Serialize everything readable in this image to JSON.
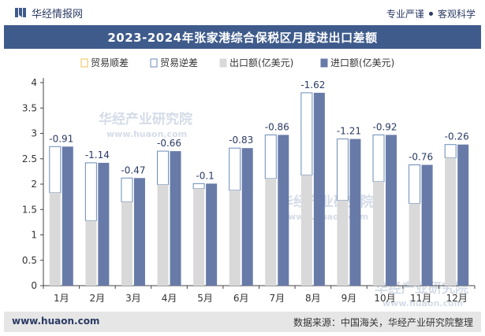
{
  "header": {
    "brand": "华经情报网",
    "slogan_left": "专业严谨",
    "slogan_right": "客观科学"
  },
  "title": "2023-2024年张家港综合保税区月度进出口差额",
  "footer": {
    "website": "www.huaon.com",
    "source": "数据来源：中国海关，华经产业研究院整理"
  },
  "watermark": {
    "cn": "华经产业研究院",
    "en": "www.huaon.com"
  },
  "colors": {
    "export": "#d9d9d9",
    "import": "#687ba8",
    "title_bg": "#3f5b8c",
    "footer_bg": "#e6e6e6"
  },
  "chart_data": {
    "type": "bar",
    "categories": [
      "1月",
      "2月",
      "3月",
      "4月",
      "5月",
      "6月",
      "7月",
      "8月",
      "9月",
      "10月",
      "11月",
      "12月"
    ],
    "legend": [
      "贸易顺差",
      "贸易逆差",
      "出口额(亿美元)",
      "进口额(亿美元)"
    ],
    "series": [
      {
        "name": "出口额(亿美元)",
        "values": [
          1.83,
          1.28,
          1.65,
          1.99,
          1.91,
          1.88,
          2.11,
          2.18,
          1.68,
          2.05,
          1.62,
          2.52
        ]
      },
      {
        "name": "进口额(亿美元)",
        "values": [
          2.74,
          2.42,
          2.12,
          2.65,
          2.01,
          2.71,
          2.97,
          3.8,
          2.89,
          2.97,
          2.38,
          2.78
        ]
      }
    ],
    "balance": [
      -0.91,
      -1.14,
      -0.47,
      -0.66,
      -0.1,
      -0.83,
      -0.86,
      -1.62,
      -1.21,
      -0.92,
      -0.76,
      -0.26
    ],
    "ylim": [
      0,
      4
    ],
    "yticks": [
      "0",
      "0.5",
      "1",
      "1.5",
      "2",
      "2.5",
      "3",
      "3.5",
      "4"
    ],
    "grid": false,
    "legend_position": "top"
  }
}
